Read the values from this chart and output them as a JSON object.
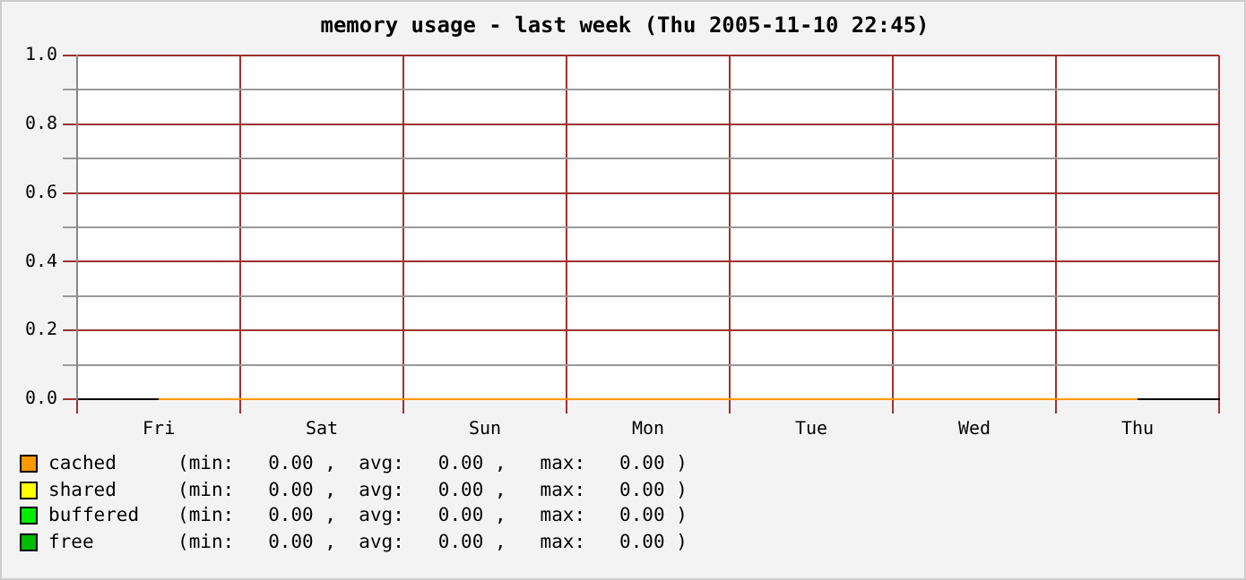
{
  "chart_data": {
    "type": "line",
    "title": "memory usage - last week (Thu 2005-11-10 22:45)",
    "categories": [
      "Fri",
      "Sat",
      "Sun",
      "Mon",
      "Tue",
      "Wed",
      "Thu"
    ],
    "series": [
      {
        "name": "cached",
        "color": "#ff9900",
        "values": [
          0,
          0,
          0,
          0,
          0,
          0,
          0
        ]
      },
      {
        "name": "shared",
        "color": "#ffff00",
        "values": [
          null,
          null,
          null,
          null,
          null,
          null,
          null
        ]
      },
      {
        "name": "buffered",
        "color": "#00ee00",
        "values": [
          null,
          null,
          null,
          null,
          null,
          null,
          null
        ]
      },
      {
        "name": "free",
        "color": "#00bb00",
        "values": [
          null,
          null,
          null,
          null,
          null,
          null,
          null
        ]
      }
    ],
    "ylim": [
      0,
      1
    ],
    "yticks": [
      {
        "value": 0,
        "label": "0.0"
      },
      {
        "value": 0.1,
        "label": null
      },
      {
        "value": 0.2,
        "label": "0.2"
      },
      {
        "value": 0.3,
        "label": null
      },
      {
        "value": 0.4,
        "label": "0.4"
      },
      {
        "value": 0.5,
        "label": null
      },
      {
        "value": 0.6,
        "label": "0.6"
      },
      {
        "value": 0.7,
        "label": null
      },
      {
        "value": 0.8,
        "label": "0.8"
      },
      {
        "value": 0.9,
        "label": null
      },
      {
        "value": 1,
        "label": "1.0"
      }
    ],
    "grid": true,
    "legend": "bottom",
    "annotations": [
      "(min:   0.00 ,  avg:   0.00 ,   max:   0.00 )",
      "(min:   0.00 ,  avg:   0.00 ,   max:   0.00 )",
      "(min:   0.00 ,  avg:   0.00 ,   max:   0.00 )",
      "(min:   0.00 ,  avg:   0.00 ,   max:   0.00 )"
    ]
  }
}
